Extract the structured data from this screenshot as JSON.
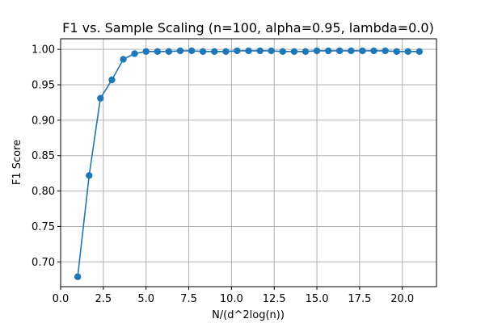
{
  "chart_data": {
    "type": "line",
    "title": "F1 vs. Sample Scaling (n=100, alpha=0.95, lambda=0.0)",
    "xlabel": "N/(d^2log(n))",
    "ylabel": "F1 Score",
    "xlim": [
      0.0,
      22.0
    ],
    "ylim": [
      0.665,
      1.015
    ],
    "xticks": [
      0.0,
      2.5,
      5.0,
      7.5,
      10.0,
      12.5,
      15.0,
      17.5,
      20.0
    ],
    "xtick_labels": [
      "0.0",
      "2.5",
      "5.0",
      "7.5",
      "10.0",
      "12.5",
      "15.0",
      "17.5",
      "20.0"
    ],
    "yticks": [
      0.7,
      0.75,
      0.8,
      0.85,
      0.9,
      0.95,
      1.0
    ],
    "ytick_labels": [
      "0.70",
      "0.75",
      "0.80",
      "0.85",
      "0.90",
      "0.95",
      "1.00"
    ],
    "grid": true,
    "legend": null,
    "series": [
      {
        "color": "#1f77b4",
        "marker": "circle",
        "x": [
          1.0,
          1.67,
          2.33,
          3.0,
          3.67,
          4.33,
          5.0,
          5.67,
          6.33,
          7.0,
          7.67,
          8.33,
          9.0,
          9.67,
          10.33,
          11.0,
          11.67,
          12.33,
          13.0,
          13.67,
          14.33,
          15.0,
          15.67,
          16.33,
          17.0,
          17.67,
          18.33,
          19.0,
          19.67,
          20.33,
          21.0
        ],
        "y": [
          0.679,
          0.822,
          0.931,
          0.957,
          0.986,
          0.994,
          0.997,
          0.997,
          0.997,
          0.998,
          0.998,
          0.997,
          0.997,
          0.997,
          0.998,
          0.998,
          0.998,
          0.998,
          0.997,
          0.997,
          0.997,
          0.998,
          0.998,
          0.998,
          0.998,
          0.998,
          0.998,
          0.998,
          0.997,
          0.997,
          0.997
        ]
      }
    ]
  }
}
